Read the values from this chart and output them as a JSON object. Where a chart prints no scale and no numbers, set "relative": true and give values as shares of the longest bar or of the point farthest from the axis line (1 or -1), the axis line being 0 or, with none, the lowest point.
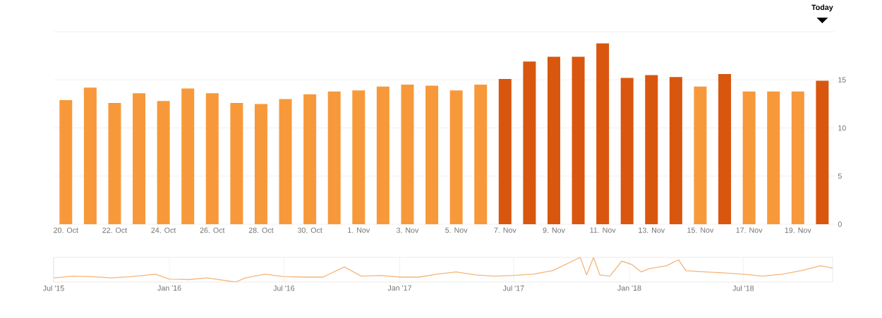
{
  "chart_data": [
    {
      "type": "bar",
      "annotations": [
        "Today"
      ],
      "categories": [
        "20. Oct",
        null,
        "22. Oct",
        null,
        "24. Oct",
        null,
        "26. Oct",
        null,
        "28. Oct",
        null,
        "30. Oct",
        null,
        "1. Nov",
        null,
        "3. Nov",
        null,
        "5. Nov",
        null,
        "7. Nov",
        null,
        "9. Nov",
        null,
        "11. Nov",
        null,
        "13. Nov",
        null,
        "15. Nov",
        null,
        "17. Nov",
        null,
        "19. Nov",
        null
      ],
      "values": [
        12.9,
        14.2,
        12.6,
        13.6,
        12.8,
        14.1,
        13.6,
        12.6,
        12.5,
        13.0,
        13.5,
        13.8,
        13.9,
        14.3,
        14.5,
        14.4,
        13.9,
        14.5,
        15.1,
        16.9,
        17.4,
        17.4,
        18.8,
        15.2,
        15.5,
        15.3,
        14.3,
        15.6,
        13.8,
        13.8,
        13.8,
        14.9
      ],
      "colors": [
        "#f7993a",
        "#f7993a",
        "#f7993a",
        "#f7993a",
        "#f7993a",
        "#f7993a",
        "#f7993a",
        "#f7993a",
        "#f7993a",
        "#f7993a",
        "#f7993a",
        "#f7993a",
        "#f7993a",
        "#f7993a",
        "#f7993a",
        "#f7993a",
        "#f7993a",
        "#f7993a",
        "#d9560f",
        "#d9560f",
        "#d9560f",
        "#d9560f",
        "#d9560f",
        "#d9560f",
        "#d9560f",
        "#d9560f",
        "#f7993a",
        "#d9560f",
        "#f7993a",
        "#f7993a",
        "#f7993a",
        "#d9560f"
      ],
      "ylim": [
        0,
        20
      ],
      "yticks": [
        0,
        5,
        10,
        15,
        {
          "value": 20,
          "label": null
        }
      ],
      "grid": "y"
    },
    {
      "type": "line",
      "relative": true,
      "color": "#f5b57a",
      "grid": "x",
      "x": [
        "2015-07-01",
        "2015-08-01",
        "2015-09-01",
        "2015-10-01",
        "2015-11-01",
        "2015-12-10",
        "2016-01-01",
        "2016-02-01",
        "2016-03-01",
        "2016-04-15",
        "2016-05-01",
        "2016-06-01",
        "2016-07-01",
        "2016-08-01",
        "2016-09-01",
        "2016-10-05",
        "2016-11-01",
        "2016-12-01",
        "2017-01-01",
        "2017-02-01",
        "2017-03-01",
        "2017-04-01",
        "2017-05-01",
        "2017-06-01",
        "2017-07-01",
        "2017-08-01",
        "2017-09-01",
        "2017-10-15",
        "2017-10-25",
        "2017-11-05",
        "2017-11-15",
        "2017-12-01",
        "2017-12-20",
        "2018-01-05",
        "2018-01-20",
        "2018-02-01",
        "2018-03-01",
        "2018-03-20",
        "2018-04-01",
        "2018-05-01",
        "2018-06-01",
        "2018-07-01",
        "2018-08-01",
        "2018-09-01",
        "2018-10-01",
        "2018-11-01",
        "2018-11-20"
      ],
      "values": [
        0.17,
        0.24,
        0.22,
        0.17,
        0.22,
        0.32,
        0.12,
        0.1,
        0.17,
        0,
        0.17,
        0.32,
        0.22,
        0.2,
        0.2,
        0.61,
        0.24,
        0.27,
        0.2,
        0.2,
        0.32,
        0.41,
        0.29,
        0.24,
        0.27,
        0.32,
        0.46,
        1,
        0.29,
        1,
        0.29,
        0.24,
        0.85,
        0.71,
        0.41,
        0.54,
        0.66,
        0.9,
        0.46,
        0.41,
        0.37,
        0.32,
        0.24,
        0.32,
        0.46,
        0.66,
        0.56
      ],
      "xlim": [
        "2015-07-01",
        "2018-11-20"
      ],
      "xticks": [
        {
          "value": "2015-07-01",
          "label": "Jul '15"
        },
        {
          "value": "2016-01-01",
          "label": "Jan '16"
        },
        {
          "value": "2016-07-01",
          "label": "Jul '16"
        },
        {
          "value": "2017-01-01",
          "label": "Jan '17"
        },
        {
          "value": "2017-07-01",
          "label": "Jul '17"
        },
        {
          "value": "2018-01-01",
          "label": "Jan '18"
        },
        {
          "value": "2018-07-01",
          "label": "Jul '18"
        }
      ]
    }
  ]
}
